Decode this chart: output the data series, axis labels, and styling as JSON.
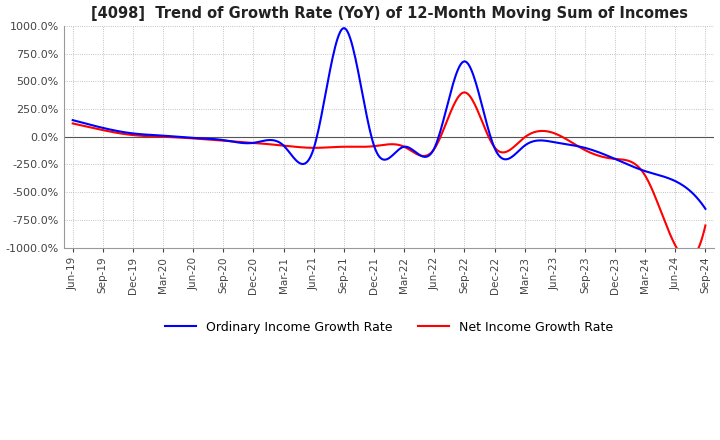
{
  "title": "[4098]  Trend of Growth Rate (YoY) of 12-Month Moving Sum of Incomes",
  "ylim": [
    -1000,
    1000
  ],
  "yticks": [
    -1000,
    -750,
    -500,
    -250,
    0,
    250,
    500,
    750,
    1000
  ],
  "background_color": "#ffffff",
  "grid_color": "#b0b0b0",
  "ordinary_color": "#0000ff",
  "net_color": "#ff0000",
  "legend_ordinary": "Ordinary Income Growth Rate",
  "legend_net": "Net Income Growth Rate",
  "x_labels": [
    "Jun-19",
    "Sep-19",
    "Dec-19",
    "Mar-20",
    "Jun-20",
    "Sep-20",
    "Dec-20",
    "Mar-21",
    "Jun-21",
    "Sep-21",
    "Dec-21",
    "Mar-22",
    "Jun-22",
    "Sep-22",
    "Dec-22",
    "Mar-23",
    "Jun-23",
    "Sep-23",
    "Dec-23",
    "Mar-24",
    "Jun-24",
    "Sep-24"
  ],
  "ordinary_income_growth": [
    150,
    80,
    30,
    10,
    -10,
    -30,
    -55,
    -80,
    -105,
    980,
    -80,
    -90,
    -105,
    680,
    -100,
    -80,
    -50,
    -100,
    -200,
    -310,
    -400,
    -650
  ],
  "net_income_growth": [
    120,
    60,
    15,
    0,
    -15,
    -35,
    -55,
    -80,
    -100,
    -90,
    -85,
    -90,
    -110,
    400,
    -95,
    -5,
    30,
    -120,
    -200,
    -350,
    -980,
    -800
  ]
}
